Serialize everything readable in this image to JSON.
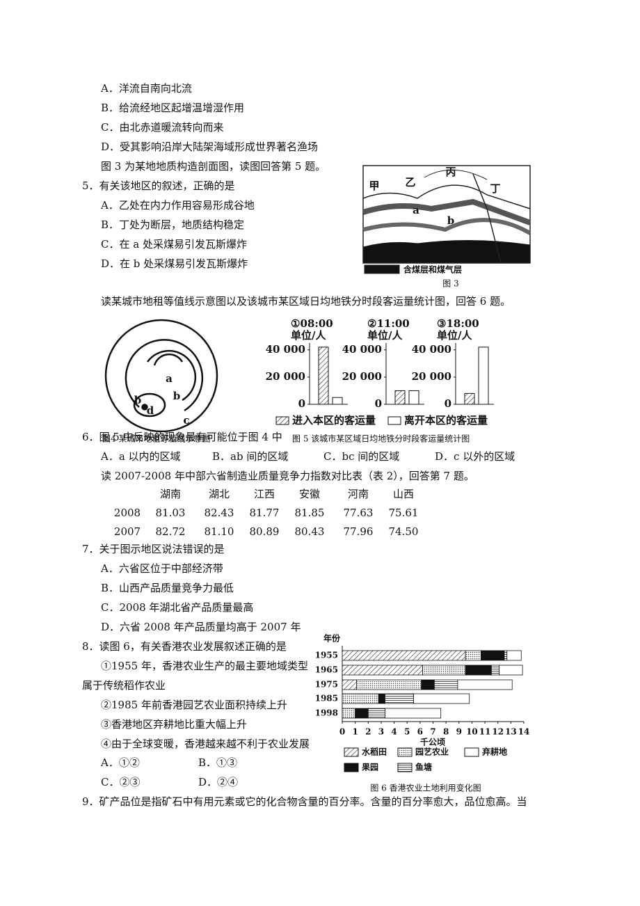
{
  "q4": {
    "options": [
      "A．洋流自南向北流",
      "B．给流经地区起增温增湿作用",
      "C．由北赤道暖流转向而来",
      "D．受其影响沿岸大陆架海域形成世界著名渔场"
    ]
  },
  "fig3_intro": "图 3 为某地地质构造剖面图，读图回答第 5 题。",
  "q5": {
    "stem": "5．有关该地区的叙述，正确的是",
    "options": [
      "A．乙处在内力作用容易形成谷地",
      "B．丁处为断层，地质结构稳定",
      "C．在 a 处采煤易引发瓦斯爆炸",
      "D．在 b 处采煤易引发瓦斯爆炸"
    ]
  },
  "fig3": {
    "labels": [
      "甲",
      "乙",
      "丙",
      "丁",
      "a",
      "b"
    ],
    "legend": "含煤层和煤气层",
    "caption": "图 3"
  },
  "q6_intro": "读某城市地租等值线示意图以及该城市某区域日均地铁分时段客运量统计图，回答 6 题。",
  "fig4": {
    "labels": [
      "a",
      "b",
      "b",
      "d",
      "c"
    ],
    "caption": "图4 某城市地租等值线示意图"
  },
  "fig5": {
    "type": "bar",
    "caption": "图 5 该城市某区域日均地铁分时段客运量统计图",
    "unit": "单位/人",
    "categories": [
      "①08:00",
      "②11:00",
      "③18:00"
    ],
    "series": [
      {
        "name": "进入本区的客运量",
        "values": [
          42000,
          10000,
          8000
        ]
      },
      {
        "name": "离开本区的客运量",
        "values": [
          5000,
          10000,
          42000
        ]
      }
    ],
    "ylim": [
      0,
      45000
    ],
    "yticks": [
      0,
      {
        "value": 20000,
        "label": "20 000"
      },
      {
        "value": 40000,
        "label": "40 000"
      }
    ]
  },
  "q6": {
    "stem": "6．图 5 中反映的现象最有可能位于图 4 中",
    "options": [
      "A．a 以内的区域",
      "B．ab 间的区域",
      "C．bc 间的区域",
      "D．c 以外的区域"
    ]
  },
  "table_intro": "读 2007-2008 年中部六省制造业质量竞争力指数对比表（表 2），回答第 7 题。",
  "table": {
    "header": [
      "湖南",
      "湖北",
      "江西",
      "安徽",
      "河南",
      "山西"
    ],
    "rows": [
      [
        "2008",
        "81.03",
        "82.43",
        "81.77",
        "81.85",
        "77.63",
        "75.61"
      ],
      [
        "2007",
        "82.72",
        "81.10",
        "80.89",
        "80.43",
        "77.96",
        "74.50"
      ]
    ]
  },
  "q7": {
    "stem": "7．关于图示地区说法错误的是",
    "options": [
      "A．六省区位于中部经济带",
      "B．山西产品质量竞争力最低",
      "C．2008 年湖北省产品质量最高",
      "D．六省 2008 年产品质量均高于 2007 年"
    ]
  },
  "q8": {
    "stem": "8．读图 6，有关香港农业发展叙述正确的是",
    "items": [
      "①1955 年，香港农业生产的最主要地域类型",
      "属于传统稻作农业",
      "②1985 年前香港园艺农业面积持续上升",
      "③香港地区弃耕地比重大幅上升",
      "④由于全球变暖，香港越来越不利于农业发展"
    ],
    "options": [
      "A．①②",
      "B．①③",
      "C．②③",
      "D．②④"
    ]
  },
  "fig6": {
    "type": "bar",
    "orientation": "horizontal",
    "stacked": true,
    "ylabel": "年份",
    "xlabel": "千公顷",
    "caption": "图 6 香港农业土地利用变化图",
    "categories": [
      "1955",
      "1965",
      "1975",
      "1985",
      "1998"
    ],
    "series": [
      {
        "name": "水稻田",
        "values": [
          9.5,
          6.2,
          1.1,
          0,
          0
        ]
      },
      {
        "name": "园艺农业",
        "values": [
          1.2,
          3.3,
          5.0,
          2.8,
          1.0
        ]
      },
      {
        "name": "果园",
        "values": [
          1.8,
          2.0,
          1.0,
          0.5,
          1.0
        ]
      },
      {
        "name": "鱼塘",
        "values": [
          0.2,
          0.6,
          1.8,
          2.2,
          1.3
        ]
      },
      {
        "name": "弃耕地",
        "values": [
          1.1,
          1.8,
          4.2,
          4.3,
          4.3
        ]
      }
    ],
    "xlim": [
      0,
      14
    ],
    "xticks": [
      0,
      1,
      2,
      3,
      4,
      5,
      6,
      7,
      8,
      9,
      10,
      11,
      12,
      13,
      14
    ]
  },
  "q9": {
    "stem": "9．矿产品位是指矿石中有用元素或它的化合物含量的百分率。含量的百分率愈大，品位愈高。当"
  }
}
